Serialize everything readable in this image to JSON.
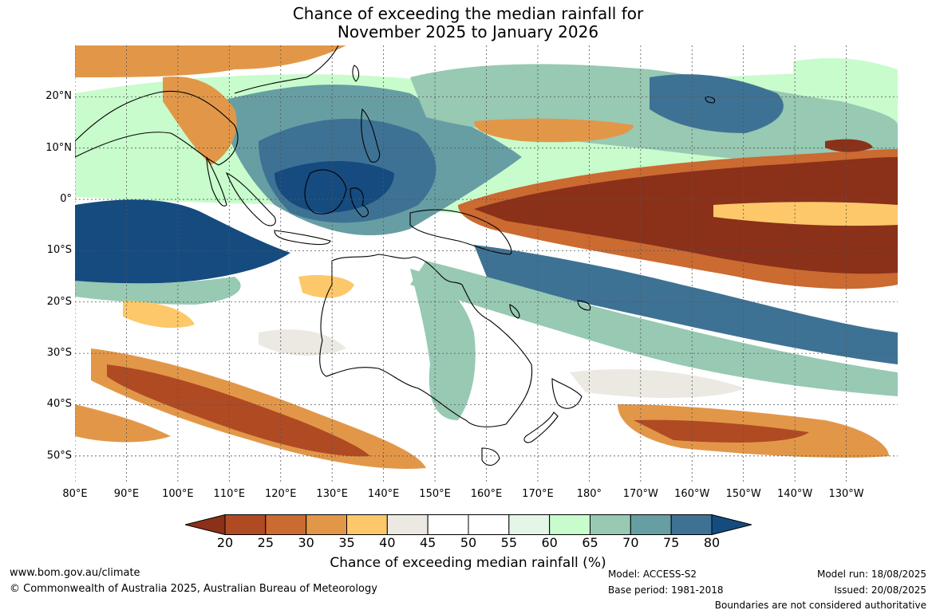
{
  "title": {
    "line1": "Chance of exceeding the median rainfall for",
    "line2": "November 2025 to January 2026"
  },
  "map": {
    "lat_ticks": [
      "20°N",
      "10°N",
      "0°",
      "10°S",
      "20°S",
      "30°S",
      "40°S",
      "50°S"
    ],
    "lon_ticks": [
      "80°E",
      "90°E",
      "100°E",
      "110°E",
      "120°E",
      "130°E",
      "140°E",
      "150°E",
      "160°E",
      "170°E",
      "180°",
      "170°W",
      "160°W",
      "150°W",
      "140°W",
      "130°W"
    ],
    "lat_values": [
      20,
      10,
      0,
      -10,
      -20,
      -30,
      -40,
      -50
    ],
    "lon_values": [
      80,
      90,
      100,
      110,
      120,
      130,
      140,
      150,
      160,
      170,
      180,
      190,
      200,
      210,
      220,
      230
    ],
    "lon_range": [
      80,
      240
    ],
    "lat_range": [
      -55,
      30
    ],
    "grid": true
  },
  "colorbar": {
    "label": "Chance of exceeding median rainfall (%)",
    "ticks": [
      "20",
      "25",
      "30",
      "35",
      "40",
      "45",
      "50",
      "55",
      "60",
      "65",
      "70",
      "75",
      "80"
    ],
    "colors": [
      "#8b3019",
      "#b04a23",
      "#cb6a31",
      "#e29748",
      "#fcc86a",
      "#ece9e2",
      "#ffffff",
      "#ffffff",
      "#e4f6e7",
      "#c8fccc",
      "#97c9b3",
      "#679ea4",
      "#3e7294",
      "#154b7f"
    ]
  },
  "footer": {
    "website": "www.bom.gov.au/climate",
    "copyright": "© Commonwealth of Australia 2025, Australian Bureau of Meteorology",
    "model": "Model: ACCESS-S2",
    "base_period": "Base period: 1981-2018",
    "model_run": "Model run: 18/08/2025",
    "issued": "Issued: 20/08/2025",
    "disclaimer": "Boundaries are not considered authoritative"
  }
}
